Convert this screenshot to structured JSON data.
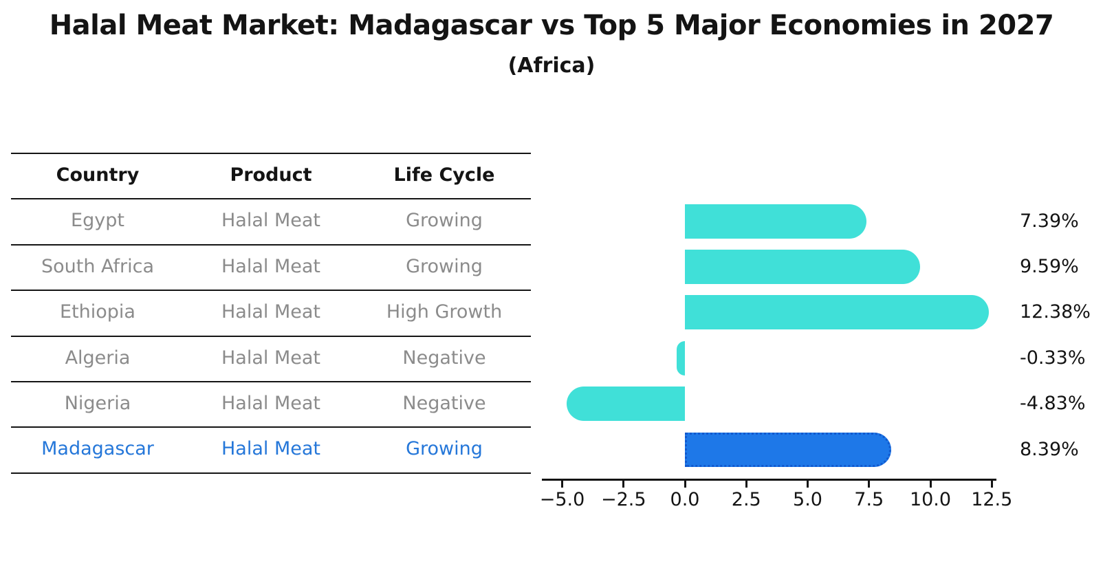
{
  "chart_data": {
    "type": "bar",
    "orientation": "horizontal",
    "title": "Halal Meat Market: Madagascar vs Top 5 Major Economies in 2027",
    "subtitle": "(Africa)",
    "categories": [
      "Egypt",
      "South Africa",
      "Ethiopia",
      "Algeria",
      "Nigeria",
      "Madagascar"
    ],
    "values": [
      7.39,
      9.59,
      12.38,
      -0.33,
      -4.83,
      8.39
    ],
    "value_labels": [
      "7.39%",
      "9.59%",
      "12.38%",
      "-0.33%",
      "-4.83%",
      "8.39%"
    ],
    "unit": "%",
    "xtick_labels": [
      "−5.0",
      "−2.5",
      "0.0",
      "2.5",
      "5.0",
      "7.5",
      "10.0",
      "12.5"
    ],
    "xtick_values": [
      -5,
      -2.5,
      0,
      2.5,
      5,
      7.5,
      10,
      12.5
    ],
    "xlim": [
      -5.8,
      12.7
    ],
    "grid": false,
    "legend": false,
    "highlight_index": 5,
    "highlight_category": "Madagascar",
    "colors": {
      "bar": "#40E0D8",
      "highlight_bar": "#1E78E8",
      "highlight_bar_border": "#1159CE",
      "highlight_text": "#2577D9",
      "text": "#141414",
      "muted_text": "#8B8B8B"
    }
  },
  "table": {
    "headers": [
      "Country",
      "Product",
      "Life Cycle"
    ],
    "rows": [
      {
        "country": "Egypt",
        "product": "Halal Meat",
        "life_cycle": "Growing",
        "highlight": false
      },
      {
        "country": "South Africa",
        "product": "Halal Meat",
        "life_cycle": "Growing",
        "highlight": false
      },
      {
        "country": "Ethiopia",
        "product": "Halal Meat",
        "life_cycle": "High Growth",
        "highlight": false
      },
      {
        "country": "Algeria",
        "product": "Halal Meat",
        "life_cycle": "Negative",
        "highlight": false
      },
      {
        "country": "Nigeria",
        "product": "Halal Meat",
        "life_cycle": "Negative",
        "highlight": false
      },
      {
        "country": "Madagascar",
        "product": "Halal Meat",
        "life_cycle": "Growing",
        "highlight": true
      }
    ]
  }
}
